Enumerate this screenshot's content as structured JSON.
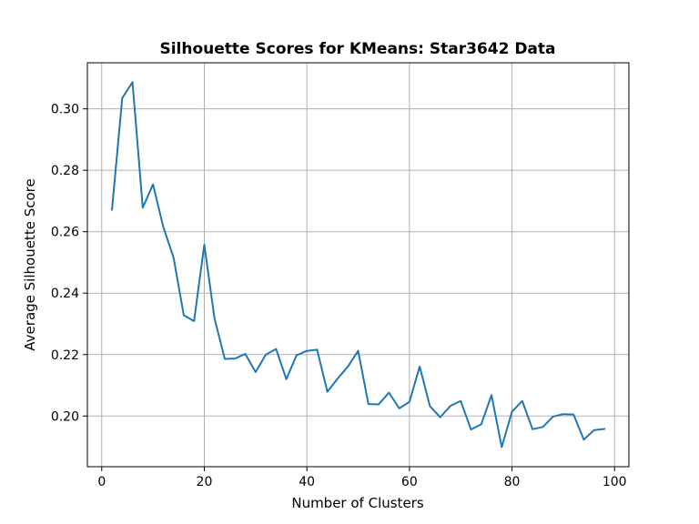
{
  "chart_data": {
    "type": "line",
    "title": "Silhouette Scores for KMeans: Star3642 Data",
    "xlabel": "Number of Clusters",
    "ylabel": "Average Silhouette Score",
    "xlim": [
      -2.8,
      102.8
    ],
    "ylim": [
      0.1835,
      0.315
    ],
    "xticks": [
      0,
      20,
      40,
      60,
      80,
      100
    ],
    "xtick_labels": [
      "0",
      "20",
      "40",
      "60",
      "80",
      "100"
    ],
    "yticks": [
      0.2,
      0.22,
      0.24,
      0.26,
      0.28,
      0.3
    ],
    "ytick_labels": [
      "0.20",
      "0.22",
      "0.24",
      "0.26",
      "0.28",
      "0.30"
    ],
    "grid": true,
    "color": "#1f77b4",
    "x": [
      2,
      4,
      6,
      8,
      10,
      12,
      14,
      16,
      18,
      20,
      22,
      24,
      26,
      28,
      30,
      32,
      34,
      36,
      38,
      40,
      42,
      44,
      46,
      48,
      50,
      52,
      54,
      56,
      58,
      60,
      62,
      64,
      66,
      68,
      70,
      72,
      74,
      76,
      78,
      80,
      82,
      84,
      86,
      88,
      90,
      92,
      94,
      96,
      98
    ],
    "y": [
      0.2672,
      0.3035,
      0.3087,
      0.2678,
      0.2754,
      0.2616,
      0.2516,
      0.2328,
      0.2309,
      0.2558,
      0.2317,
      0.2186,
      0.2187,
      0.2202,
      0.2143,
      0.22,
      0.2218,
      0.212,
      0.2198,
      0.2212,
      0.2216,
      0.2079,
      0.2122,
      0.2161,
      0.2212,
      0.2039,
      0.2038,
      0.2076,
      0.2025,
      0.2046,
      0.2161,
      0.2032,
      0.1996,
      0.2033,
      0.2049,
      0.1956,
      0.1973,
      0.2068,
      0.1899,
      0.2014,
      0.2049,
      0.1957,
      0.1964,
      0.1998,
      0.2006,
      0.2005,
      0.1923,
      0.1954,
      0.1958
    ]
  }
}
